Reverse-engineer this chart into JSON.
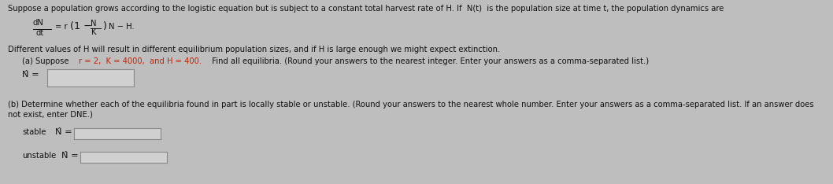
{
  "bg_color": "#bebebe",
  "text_color": "#111111",
  "red_color": "#cc2200",
  "line1": "Suppose a population grows according to the logistic equation but is subject to a constant total harvest rate of H. If  N(t)  is the population size at time t, the population dynamics are",
  "line3": "Different values of H will result in different equilibrium population sizes, and if H is large enough we might expect extinction.",
  "part_a_prefix": "(a) Suppose ",
  "part_a_values": "r = 2,  K = 4000,  and H = 400.",
  "part_a_suffix": "  Find all equilibria. (Round your answers to the nearest integer. Enter your answers as a comma-separated list.)",
  "part_b_line1": "(b) Determine whether each of the equilibria found in part is locally stable or unstable. (Round your answers to the nearest whole number. Enter your answers as a comma-separated list. If an answer does",
  "part_b_line2": "not exist, enter DNE.)",
  "fs": 7.2,
  "fs_eq": 7.5,
  "box_facecolor": "#d0d0d0",
  "box_edgecolor": "#888888"
}
